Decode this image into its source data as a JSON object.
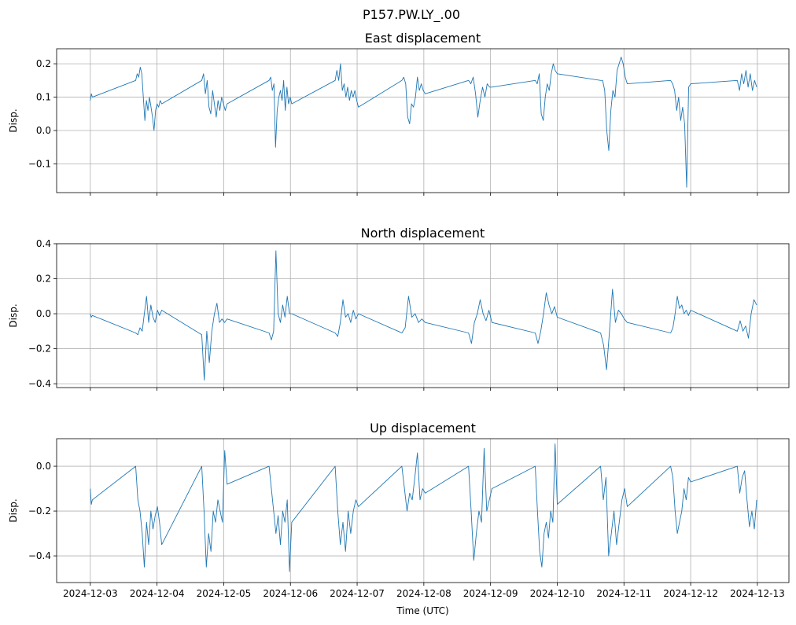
{
  "figure_title": "P157.PW.LY_.00",
  "chart_data": [
    {
      "type": "line",
      "title": "East displacement",
      "ylabel": "Disp.",
      "xlabel": "",
      "ylim": [
        -0.186,
        0.245
      ],
      "yticks": [
        0.2,
        0.1,
        0.0,
        -0.1
      ],
      "ytick_labels": [
        "0.2",
        "0.1",
        "0.0",
        "−0.1"
      ],
      "show_xtick_labels": false,
      "values": [
        [
          0.09,
          0.11,
          0.1
        ],
        [
          0.15,
          0.17,
          0.16,
          0.19,
          0.17,
          0.1,
          0.03,
          0.09,
          0.06,
          0.1,
          0.07,
          0.04,
          0.0,
          0.06,
          0.08,
          0.07,
          0.09,
          0.08
        ],
        [
          0.15,
          0.17,
          0.11,
          0.15,
          0.07,
          0.05,
          0.12,
          0.08,
          0.04,
          0.09,
          0.06,
          0.1,
          0.08,
          0.06,
          0.08
        ],
        [
          0.15,
          0.16,
          0.12,
          0.14,
          -0.05,
          0.06,
          0.1,
          0.12,
          0.09,
          0.15,
          0.06,
          0.13,
          0.08,
          0.1,
          0.08
        ],
        [
          0.15,
          0.18,
          0.15,
          0.2,
          0.12,
          0.14,
          0.1,
          0.13,
          0.09,
          0.12,
          0.1,
          0.12,
          0.09,
          0.07
        ],
        [
          0.15,
          0.16,
          0.14,
          0.04,
          0.02,
          0.08,
          0.07,
          0.1,
          0.16,
          0.12,
          0.14,
          0.12,
          0.11
        ],
        [
          0.15,
          0.14,
          0.16,
          0.11,
          0.04,
          0.09,
          0.13,
          0.1,
          0.14,
          0.13,
          0.13
        ],
        [
          0.15,
          0.14,
          0.17,
          0.05,
          0.03,
          0.1,
          0.14,
          0.12,
          0.17,
          0.2,
          0.18,
          0.17
        ],
        [
          0.15,
          0.15,
          0.12,
          0.0,
          -0.06,
          0.06,
          0.12,
          0.1,
          0.18,
          0.2,
          0.22,
          0.2,
          0.16,
          0.14
        ],
        [
          0.15,
          0.14,
          0.12,
          0.06,
          0.1,
          0.03,
          0.07,
          0.02,
          -0.17,
          0.13,
          0.14
        ],
        [
          0.15,
          0.12,
          0.17,
          0.14,
          0.18,
          0.13,
          0.17,
          0.12,
          0.15,
          0.13
        ]
      ]
    },
    {
      "type": "line",
      "title": "North displacement",
      "ylabel": "Disp.",
      "xlabel": "",
      "ylim": [
        -0.422,
        0.4
      ],
      "yticks": [
        0.4,
        0.2,
        0.0,
        -0.2,
        -0.4
      ],
      "ytick_labels": [
        "0.4",
        "0.2",
        "0.0",
        "−0.2",
        "−0.4"
      ],
      "show_xtick_labels": false,
      "values": [
        [
          0.0,
          -0.02,
          -0.01
        ],
        [
          -0.11,
          -0.12,
          -0.08,
          -0.1,
          0.0,
          0.1,
          -0.05,
          0.05,
          -0.02,
          -0.05,
          0.02,
          -0.01,
          0.02
        ],
        [
          -0.12,
          -0.38,
          -0.1,
          -0.28,
          -0.1,
          0.0,
          0.06,
          -0.05,
          -0.03,
          -0.05,
          -0.03
        ],
        [
          -0.11,
          -0.15,
          -0.1,
          0.36,
          0.0,
          -0.05,
          0.05,
          -0.02,
          0.1,
          0.0,
          0.0
        ],
        [
          -0.11,
          -0.13,
          -0.05,
          0.08,
          -0.02,
          0.0,
          -0.05,
          0.02,
          -0.03,
          0.0
        ],
        [
          -0.11,
          -0.08,
          0.1,
          -0.02,
          0.0,
          -0.05,
          -0.03,
          -0.05
        ],
        [
          -0.11,
          -0.17,
          -0.05,
          0.0,
          0.08,
          0.0,
          -0.04,
          0.02,
          -0.05
        ],
        [
          -0.11,
          -0.17,
          -0.1,
          0.0,
          0.12,
          0.05,
          0.0,
          0.04,
          -0.02
        ],
        [
          -0.11,
          -0.18,
          -0.32,
          -0.1,
          0.14,
          -0.05,
          0.02,
          0.0,
          -0.03,
          -0.05
        ],
        [
          -0.11,
          -0.08,
          0.0,
          0.1,
          0.03,
          0.05,
          0.0,
          0.02,
          -0.01,
          0.02
        ],
        [
          -0.1,
          -0.04,
          -0.1,
          -0.07,
          -0.14,
          0.0,
          0.08,
          0.05
        ]
      ]
    },
    {
      "type": "line",
      "title": "Up displacement",
      "ylabel": "Disp.",
      "xlabel": "Time (UTC)",
      "ylim": [
        -0.519,
        0.123
      ],
      "yticks": [
        0.0,
        -0.2,
        -0.4
      ],
      "ytick_labels": [
        "0.0",
        "−0.2",
        "−0.4"
      ],
      "show_xtick_labels": true,
      "values": [
        [
          -0.1,
          -0.17,
          -0.15
        ],
        [
          0.0,
          -0.15,
          -0.2,
          -0.3,
          -0.45,
          -0.25,
          -0.35,
          -0.2,
          -0.28,
          -0.22,
          -0.18,
          -0.25,
          -0.35
        ],
        [
          0.0,
          -0.2,
          -0.45,
          -0.3,
          -0.38,
          -0.2,
          -0.25,
          -0.15,
          -0.2,
          -0.25,
          0.07,
          -0.08
        ],
        [
          0.0,
          -0.1,
          -0.2,
          -0.3,
          -0.22,
          -0.35,
          -0.2,
          -0.25,
          -0.15,
          -0.47,
          -0.25
        ],
        [
          0.0,
          -0.2,
          -0.35,
          -0.25,
          -0.38,
          -0.2,
          -0.3,
          -0.2,
          -0.15,
          -0.18
        ],
        [
          0.0,
          -0.1,
          -0.2,
          -0.12,
          -0.15,
          -0.05,
          0.06,
          -0.15,
          -0.1,
          -0.12
        ],
        [
          0.0,
          -0.2,
          -0.42,
          -0.3,
          -0.2,
          -0.25,
          0.08,
          -0.2,
          -0.15,
          -0.1
        ],
        [
          0.0,
          -0.2,
          -0.38,
          -0.45,
          -0.3,
          -0.25,
          -0.32,
          -0.2,
          -0.25,
          0.1,
          -0.17
        ],
        [
          0.0,
          -0.15,
          -0.05,
          -0.4,
          -0.3,
          -0.2,
          -0.35,
          -0.25,
          -0.15,
          -0.1,
          -0.18
        ],
        [
          0.0,
          -0.05,
          -0.2,
          -0.3,
          -0.25,
          -0.2,
          -0.1,
          -0.15,
          -0.05,
          -0.07
        ],
        [
          0.0,
          -0.12,
          -0.05,
          -0.02,
          -0.15,
          -0.27,
          -0.2,
          -0.28,
          -0.15
        ]
      ]
    }
  ],
  "x_axis": {
    "xlim": [
      -0.505,
      10.473
    ],
    "ticks": [
      0,
      1,
      2,
      3,
      4,
      5,
      6,
      7,
      8,
      9,
      10
    ],
    "tick_labels": [
      "2024-12-03",
      "2024-12-04",
      "2024-12-05",
      "2024-12-06",
      "2024-12-07",
      "2024-12-08",
      "2024-12-09",
      "2024-12-10",
      "2024-12-11",
      "2024-12-12",
      "2024-12-13"
    ],
    "segments": [
      [
        0,
        0.03
      ],
      [
        0.68,
        1.07
      ],
      [
        1.67,
        2.05
      ],
      [
        2.68,
        3.02
      ],
      [
        3.67,
        4.02
      ],
      [
        4.67,
        5.02
      ],
      [
        5.67,
        6.02
      ],
      [
        6.67,
        7.0
      ],
      [
        7.65,
        8.05
      ],
      [
        8.7,
        9.0
      ],
      [
        9.7,
        9.99
      ]
    ]
  },
  "colors": {
    "line": "#1f77b4",
    "grid": "#b0b0b0",
    "axis": "#000000"
  },
  "grid": true
}
